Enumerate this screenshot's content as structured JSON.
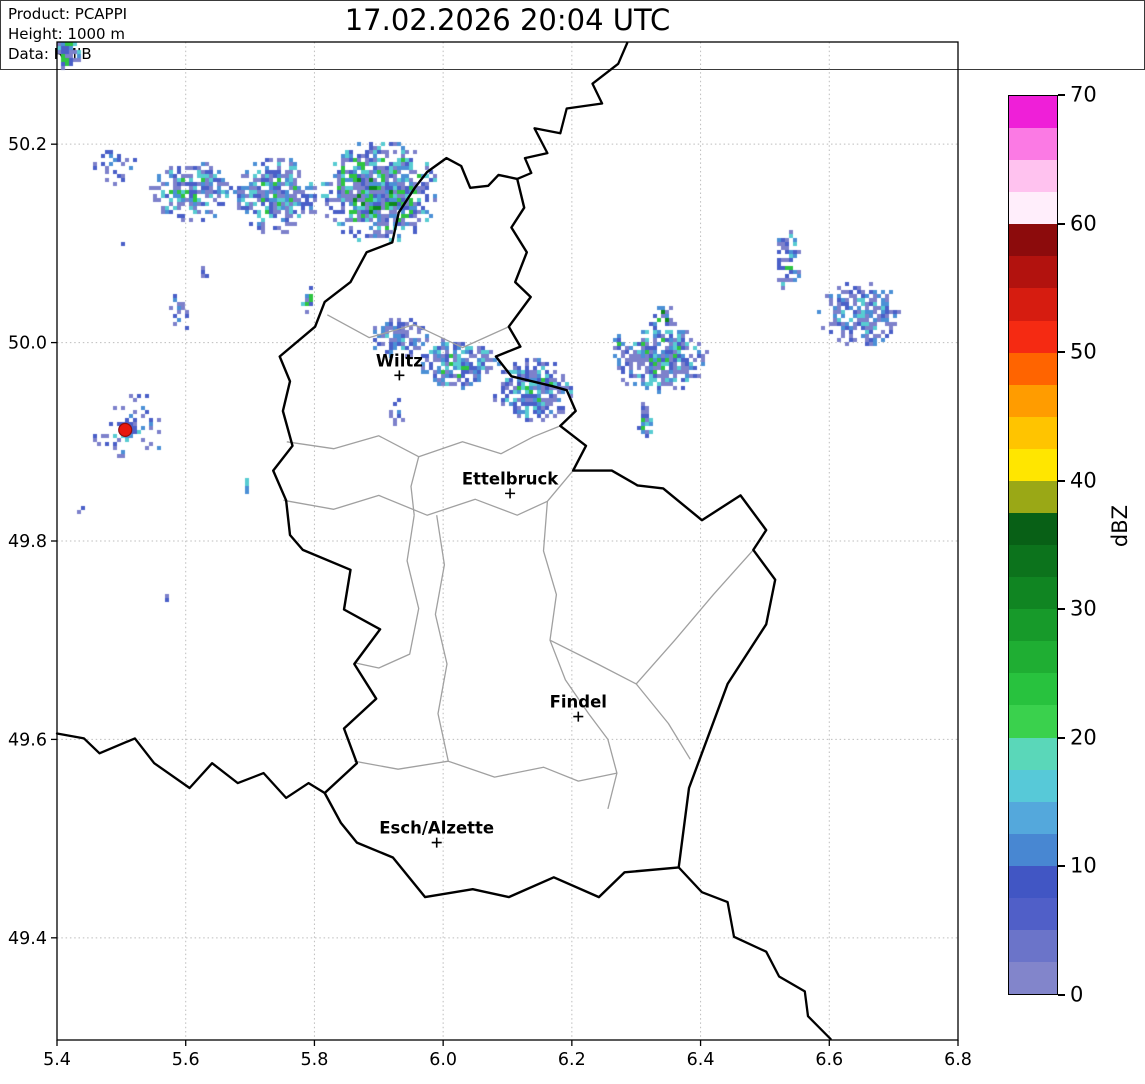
{
  "title": "17.02.2026 20:04 UTC",
  "info_box": {
    "lines": [
      "Product: PCAPPI",
      "Height: 1000 m",
      "Data: RMIB"
    ]
  },
  "axes": {
    "lon_min": 5.4,
    "lon_max": 6.8,
    "lat_min": 49.297,
    "lat_max": 50.303,
    "x_ticks": [
      {
        "v": 5.4,
        "label": "5.4"
      },
      {
        "v": 5.6,
        "label": "5.6"
      },
      {
        "v": 5.8,
        "label": "5.8"
      },
      {
        "v": 6.0,
        "label": "6.0"
      },
      {
        "v": 6.2,
        "label": "6.2"
      },
      {
        "v": 6.4,
        "label": "6.4"
      },
      {
        "v": 6.6,
        "label": "6.6"
      },
      {
        "v": 6.8,
        "label": "6.8"
      }
    ],
    "y_ticks": [
      {
        "v": 50.2,
        "label": "50.2"
      },
      {
        "v": 50.0,
        "label": "50.0"
      },
      {
        "v": 49.8,
        "label": "49.8"
      },
      {
        "v": 49.6,
        "label": "49.6"
      },
      {
        "v": 49.4,
        "label": "49.4"
      }
    ],
    "grid_color": "#bdbdbd"
  },
  "cities": [
    {
      "name": "Wiltz",
      "lon": 5.932,
      "lat": 49.967
    },
    {
      "name": "Ettelbruck",
      "lon": 6.104,
      "lat": 49.848
    },
    {
      "name": "Findel",
      "lon": 6.21,
      "lat": 49.623
    },
    {
      "name": "Esch/Alzette",
      "lon": 5.99,
      "lat": 49.496
    }
  ],
  "radar_site": {
    "lon": 5.506,
    "lat": 49.912,
    "color": "#e8170d",
    "edge": "#8f0f0f"
  },
  "colorbar": {
    "label": "dBZ",
    "min": 0,
    "max": 70,
    "ticks": [
      {
        "v": 0,
        "label": "0"
      },
      {
        "v": 10,
        "label": "10"
      },
      {
        "v": 20,
        "label": "20"
      },
      {
        "v": 30,
        "label": "30"
      },
      {
        "v": 40,
        "label": "40"
      },
      {
        "v": 50,
        "label": "50"
      },
      {
        "v": 60,
        "label": "60"
      },
      {
        "v": 70,
        "label": "70"
      }
    ],
    "segments_bottom_to_top": [
      "#8285cb",
      "#6b74c9",
      "#505fc8",
      "#4156c4",
      "#4887d2",
      "#54a8dc",
      "#57c9d8",
      "#5ad7b9",
      "#3ad14d",
      "#28c23e",
      "#1fae33",
      "#179a2a",
      "#108522",
      "#0c731c",
      "#086016",
      "#9aa816",
      "#ffe600",
      "#ffc400",
      "#ff9c00",
      "#ff6400",
      "#f52a12",
      "#d61c10",
      "#b2120e",
      "#8c0b0c",
      "#ffeefb",
      "#ffc2ef",
      "#fb7ae4",
      "#ef1fd8"
    ]
  },
  "echo_palette": [
    "#7d81cb",
    "#4a5fc8",
    "#4b90d6",
    "#58ccd2",
    "#2fc441",
    "#0d8a1c"
  ],
  "echo_blobs": [
    {
      "lon": 5.415,
      "lat": 50.292,
      "rx": 0.024,
      "ry": 0.016,
      "density": 0.95,
      "max": 5
    },
    {
      "lon": 5.487,
      "lat": 50.176,
      "rx": 0.042,
      "ry": 0.02,
      "density": 0.4,
      "max": 2
    },
    {
      "lon": 5.61,
      "lat": 50.152,
      "rx": 0.068,
      "ry": 0.03,
      "density": 0.8,
      "max": 4
    },
    {
      "lon": 5.742,
      "lat": 50.148,
      "rx": 0.065,
      "ry": 0.04,
      "density": 0.85,
      "max": 4
    },
    {
      "lon": 5.9,
      "lat": 50.152,
      "rx": 0.092,
      "ry": 0.052,
      "density": 0.95,
      "max": 5
    },
    {
      "lon": 5.59,
      "lat": 50.032,
      "rx": 0.018,
      "ry": 0.024,
      "density": 0.45,
      "max": 2
    },
    {
      "lon": 5.79,
      "lat": 50.045,
      "rx": 0.013,
      "ry": 0.015,
      "density": 0.7,
      "max": 4
    },
    {
      "lon": 5.93,
      "lat": 50.005,
      "rx": 0.048,
      "ry": 0.021,
      "density": 0.85,
      "max": 3
    },
    {
      "lon": 6.025,
      "lat": 49.978,
      "rx": 0.062,
      "ry": 0.027,
      "density": 0.9,
      "max": 4
    },
    {
      "lon": 6.142,
      "lat": 49.952,
      "rx": 0.066,
      "ry": 0.031,
      "density": 0.9,
      "max": 4
    },
    {
      "lon": 5.932,
      "lat": 49.93,
      "rx": 0.016,
      "ry": 0.016,
      "density": 0.4,
      "max": 2
    },
    {
      "lon": 6.335,
      "lat": 49.985,
      "rx": 0.077,
      "ry": 0.036,
      "density": 0.85,
      "max": 4
    },
    {
      "lon": 6.345,
      "lat": 50.028,
      "rx": 0.016,
      "ry": 0.014,
      "density": 0.9,
      "max": 5
    },
    {
      "lon": 6.272,
      "lat": 50.0,
      "rx": 0.008,
      "ry": 0.009,
      "density": 1.0,
      "max": 5
    },
    {
      "lon": 6.315,
      "lat": 49.922,
      "rx": 0.013,
      "ry": 0.018,
      "density": 0.95,
      "max": 5
    },
    {
      "lon": 6.535,
      "lat": 50.082,
      "rx": 0.021,
      "ry": 0.031,
      "density": 0.8,
      "max": 4
    },
    {
      "lon": 6.65,
      "lat": 50.028,
      "rx": 0.067,
      "ry": 0.033,
      "density": 0.78,
      "max": 3
    },
    {
      "lon": 5.515,
      "lat": 49.915,
      "rx": 0.062,
      "ry": 0.035,
      "density": 0.22,
      "max": 3
    },
    {
      "lon": 5.513,
      "lat": 49.912,
      "rx": 0.016,
      "ry": 0.011,
      "density": 0.95,
      "max": 4
    },
    {
      "lon": 5.695,
      "lat": 49.86,
      "rx": 0.007,
      "ry": 0.011,
      "density": 0.85,
      "max": 3
    },
    {
      "lon": 5.63,
      "lat": 50.07,
      "rx": 0.006,
      "ry": 0.009,
      "density": 0.7,
      "max": 2
    },
    {
      "lon": 5.44,
      "lat": 49.828,
      "rx": 0.007,
      "ry": 0.007,
      "density": 0.6,
      "max": 2
    },
    {
      "lon": 5.57,
      "lat": 49.744,
      "rx": 0.006,
      "ry": 0.006,
      "density": 0.6,
      "max": 2
    },
    {
      "lon": 5.458,
      "lat": 49.79,
      "rx": 0.006,
      "ry": 0.006,
      "density": 0.5,
      "max": 2
    },
    {
      "lon": 5.5,
      "lat": 50.103,
      "rx": 0.008,
      "ry": 0.006,
      "density": 0.5,
      "max": 2
    }
  ],
  "borders": {
    "country_color": "#000000",
    "internal_color": "#a0a0a0",
    "country": [
      [
        5.975,
        50.172
      ],
      [
        6.005,
        50.186
      ],
      [
        6.028,
        50.178
      ],
      [
        6.042,
        50.156
      ],
      [
        6.07,
        50.158
      ],
      [
        6.086,
        50.169
      ],
      [
        6.115,
        50.165
      ],
      [
        6.126,
        50.136
      ],
      [
        6.106,
        50.116
      ],
      [
        6.13,
        50.091
      ],
      [
        6.112,
        50.061
      ],
      [
        6.136,
        50.046
      ],
      [
        6.102,
        50.016
      ],
      [
        6.12,
        49.996
      ],
      [
        6.082,
        49.986
      ],
      [
        6.106,
        49.966
      ],
      [
        6.17,
        49.956
      ],
      [
        6.192,
        49.952
      ],
      [
        6.206,
        49.931
      ],
      [
        6.182,
        49.916
      ],
      [
        6.222,
        49.896
      ],
      [
        6.202,
        49.871
      ],
      [
        6.262,
        49.871
      ],
      [
        6.302,
        49.856
      ],
      [
        6.342,
        49.853
      ],
      [
        6.402,
        49.821
      ],
      [
        6.462,
        49.846
      ],
      [
        6.502,
        49.811
      ],
      [
        6.482,
        49.791
      ],
      [
        6.516,
        49.761
      ],
      [
        6.502,
        49.716
      ],
      [
        6.442,
        49.656
      ],
      [
        6.382,
        49.551
      ],
      [
        6.366,
        49.471
      ],
      [
        6.282,
        49.466
      ],
      [
        6.242,
        49.441
      ],
      [
        6.172,
        49.461
      ],
      [
        6.102,
        49.441
      ],
      [
        6.046,
        49.449
      ],
      [
        5.972,
        49.441
      ],
      [
        5.922,
        49.481
      ],
      [
        5.866,
        49.496
      ],
      [
        5.841,
        49.516
      ],
      [
        5.816,
        49.546
      ],
      [
        5.866,
        49.576
      ],
      [
        5.846,
        49.611
      ],
      [
        5.896,
        49.641
      ],
      [
        5.862,
        49.676
      ],
      [
        5.902,
        49.711
      ],
      [
        5.846,
        49.731
      ],
      [
        5.856,
        49.771
      ],
      [
        5.782,
        49.791
      ],
      [
        5.762,
        49.806
      ],
      [
        5.756,
        49.841
      ],
      [
        5.736,
        49.871
      ],
      [
        5.766,
        49.896
      ],
      [
        5.751,
        49.931
      ],
      [
        5.762,
        49.961
      ],
      [
        5.746,
        49.986
      ],
      [
        5.801,
        50.016
      ],
      [
        5.816,
        50.041
      ],
      [
        5.856,
        50.061
      ],
      [
        5.881,
        50.091
      ],
      [
        5.921,
        50.101
      ],
      [
        5.931,
        50.131
      ],
      [
        5.956,
        50.156
      ],
      [
        5.975,
        50.172
      ]
    ],
    "external": [
      [
        [
          6.286,
          50.302
        ],
        [
          6.272,
          50.281
        ],
        [
          6.232,
          50.261
        ],
        [
          6.247,
          50.241
        ],
        [
          6.192,
          50.236
        ],
        [
          6.182,
          50.211
        ],
        [
          6.142,
          50.216
        ],
        [
          6.162,
          50.191
        ],
        [
          6.127,
          50.186
        ],
        [
          6.137,
          50.171
        ],
        [
          6.115,
          50.165
        ]
      ],
      [
        [
          5.4,
          49.606
        ],
        [
          5.442,
          49.601
        ],
        [
          5.466,
          49.586
        ],
        [
          5.521,
          49.601
        ],
        [
          5.551,
          49.576
        ],
        [
          5.606,
          49.551
        ],
        [
          5.641,
          49.576
        ],
        [
          5.681,
          49.556
        ],
        [
          5.721,
          49.566
        ],
        [
          5.756,
          49.541
        ],
        [
          5.791,
          49.556
        ],
        [
          5.816,
          49.546
        ]
      ],
      [
        [
          6.366,
          49.471
        ],
        [
          6.402,
          49.446
        ],
        [
          6.442,
          49.436
        ],
        [
          6.452,
          49.401
        ],
        [
          6.502,
          49.386
        ],
        [
          6.522,
          49.361
        ],
        [
          6.562,
          49.346
        ],
        [
          6.567,
          49.321
        ],
        [
          6.602,
          49.298
        ]
      ]
    ],
    "internal": [
      [
        [
          5.82,
          50.028
        ],
        [
          5.885,
          50.005
        ],
        [
          5.955,
          50.018
        ],
        [
          6.03,
          49.995
        ],
        [
          6.102,
          50.016
        ]
      ],
      [
        [
          5.757,
          49.9
        ],
        [
          5.83,
          49.893
        ],
        [
          5.9,
          49.906
        ],
        [
          5.962,
          49.885
        ],
        [
          6.03,
          49.9
        ],
        [
          6.09,
          49.888
        ],
        [
          6.14,
          49.905
        ],
        [
          6.182,
          49.916
        ]
      ],
      [
        [
          5.752,
          49.841
        ],
        [
          5.83,
          49.832
        ],
        [
          5.9,
          49.846
        ],
        [
          5.975,
          49.826
        ],
        [
          6.05,
          49.842
        ],
        [
          6.115,
          49.826
        ],
        [
          6.162,
          49.84
        ],
        [
          6.202,
          49.871
        ]
      ],
      [
        [
          5.962,
          49.885
        ],
        [
          5.95,
          49.855
        ],
        [
          5.955,
          49.826
        ]
      ],
      [
        [
          5.955,
          49.826
        ],
        [
          5.944,
          49.78
        ],
        [
          5.962,
          49.732
        ],
        [
          5.948,
          49.686
        ],
        [
          5.9,
          49.672
        ],
        [
          5.864,
          49.677
        ]
      ],
      [
        [
          5.99,
          49.826
        ],
        [
          6.002,
          49.776
        ],
        [
          5.988,
          49.726
        ],
        [
          6.006,
          49.676
        ],
        [
          5.992,
          49.626
        ],
        [
          6.008,
          49.578
        ]
      ],
      [
        [
          6.162,
          49.84
        ],
        [
          6.156,
          49.79
        ],
        [
          6.176,
          49.746
        ],
        [
          6.166,
          49.7
        ],
        [
          6.19,
          49.66
        ],
        [
          6.226,
          49.626
        ],
        [
          6.256,
          49.6
        ],
        [
          6.27,
          49.566
        ],
        [
          6.256,
          49.53
        ]
      ],
      [
        [
          5.862,
          49.578
        ],
        [
          5.93,
          49.57
        ],
        [
          6.008,
          49.578
        ],
        [
          6.08,
          49.562
        ],
        [
          6.156,
          49.572
        ],
        [
          6.21,
          49.558
        ],
        [
          6.27,
          49.566
        ]
      ],
      [
        [
          6.166,
          49.7
        ],
        [
          6.24,
          49.676
        ],
        [
          6.3,
          49.656
        ],
        [
          6.35,
          49.616
        ],
        [
          6.384,
          49.58
        ]
      ],
      [
        [
          6.482,
          49.791
        ],
        [
          6.42,
          49.746
        ],
        [
          6.36,
          49.7
        ],
        [
          6.3,
          49.656
        ]
      ]
    ]
  }
}
